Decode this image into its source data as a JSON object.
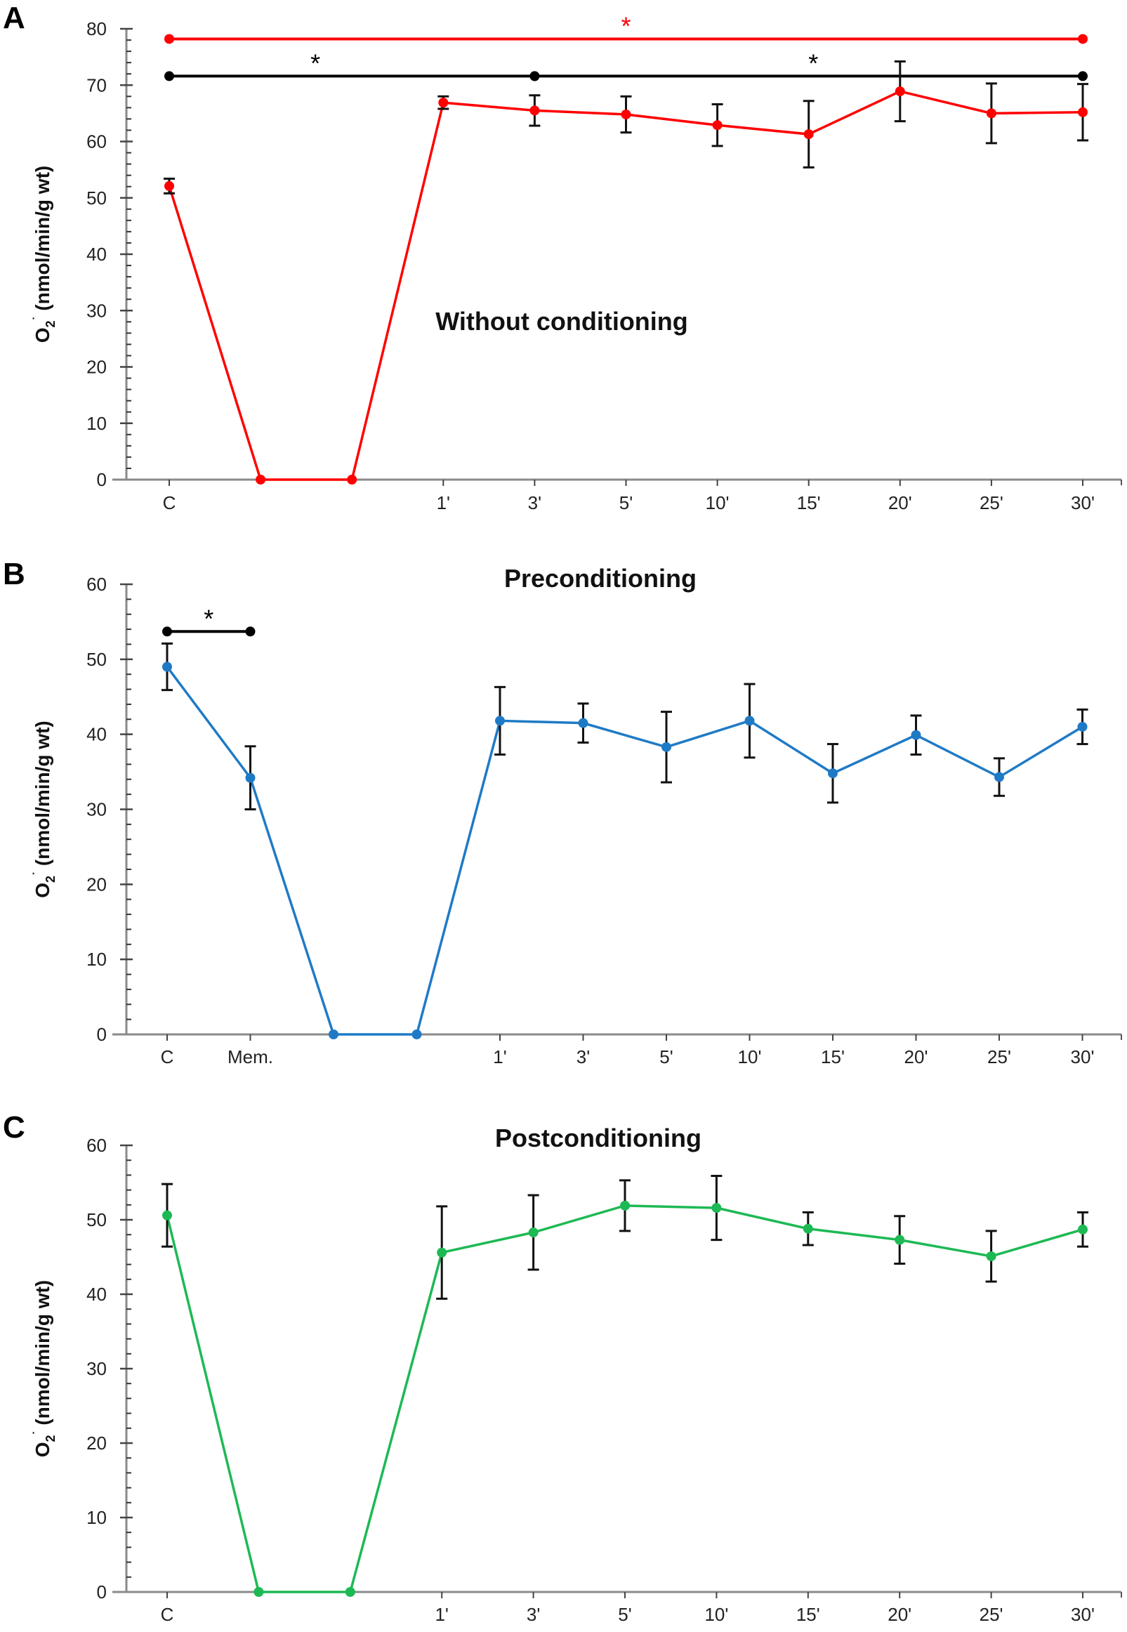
{
  "chart_data": [
    {
      "type": "line",
      "panel": "A",
      "title": "Without conditioning",
      "ylabel": "O2·⁻ (nmol/min/g wt)",
      "ylabel_parts": {
        "main": "O",
        "sub": "2",
        "sup": "·",
        "rest": " (nmol/min/g wt)"
      },
      "xlabel": "",
      "ylim": [
        0,
        80
      ],
      "yticks": [
        0,
        10,
        20,
        30,
        40,
        50,
        60,
        70,
        80
      ],
      "minor_tick_step": 2,
      "categories": [
        "C",
        "",
        "",
        "1'",
        "3'",
        "5'",
        "10'",
        "15'",
        "20'",
        "25'",
        "30'"
      ],
      "color": "#ff0000",
      "series": [
        {
          "name": "Without conditioning",
          "values": [
            52.1,
            0,
            0,
            66.9,
            65.5,
            64.8,
            62.9,
            61.3,
            68.9,
            65.0,
            65.2
          ],
          "errors": [
            1.3,
            null,
            null,
            1.1,
            2.7,
            3.2,
            3.7,
            5.9,
            5.3,
            5.3,
            5.0
          ]
        }
      ],
      "significance": [
        {
          "from": 0,
          "to": 10,
          "level": 78.2,
          "label": "*",
          "color": "#ff0000",
          "label_at": 5
        },
        {
          "from": 0,
          "to": 4,
          "level": 71.6,
          "label": "*",
          "color": "#000000",
          "label_at": 1.6
        },
        {
          "from": 4,
          "to": 10,
          "level": 71.6,
          "label": "*",
          "color": "#000000",
          "label_at": 7.05
        }
      ]
    },
    {
      "type": "line",
      "panel": "B",
      "title": "Preconditioning",
      "ylabel": "O2·⁻ (nmol/min/g wt)",
      "ylabel_parts": {
        "main": "O",
        "sub": "2",
        "sup": "·",
        "rest": " (nmol/min/g wt)"
      },
      "xlabel": "",
      "ylim": [
        0,
        60
      ],
      "yticks": [
        0,
        10,
        20,
        30,
        40,
        50,
        60
      ],
      "minor_tick_step": 2,
      "categories": [
        "C",
        "Mem.",
        "",
        "",
        "1'",
        "3'",
        "5'",
        "10'",
        "15'",
        "20'",
        "25'",
        "30'"
      ],
      "color": "#1f7ac6",
      "series": [
        {
          "name": "Preconditioning",
          "values": [
            49.0,
            34.2,
            0,
            0,
            41.8,
            41.5,
            38.3,
            41.8,
            34.8,
            39.9,
            34.3,
            41.0
          ],
          "errors": [
            3.1,
            4.2,
            null,
            null,
            4.5,
            2.6,
            4.7,
            4.9,
            3.9,
            2.6,
            2.5,
            2.3
          ]
        }
      ],
      "significance": [
        {
          "from": 0,
          "to": 1,
          "level": 53.7,
          "label": "*",
          "color": "#000000",
          "label_at": 0.5
        }
      ]
    },
    {
      "type": "line",
      "panel": "C",
      "title": "Postconditioning",
      "ylabel": "O2·⁻ (nmol/min/g wt)",
      "ylabel_parts": {
        "main": "O",
        "sub": "2",
        "sup": "·",
        "rest": " (nmol/min/g wt)"
      },
      "xlabel": "",
      "ylim": [
        0,
        60
      ],
      "yticks": [
        0,
        10,
        20,
        30,
        40,
        50,
        60
      ],
      "minor_tick_step": 2,
      "categories": [
        "C",
        "",
        "",
        "1'",
        "3'",
        "5'",
        "10'",
        "15'",
        "20'",
        "25'",
        "30'"
      ],
      "color": "#1db954",
      "series": [
        {
          "name": "Postconditioning",
          "values": [
            50.6,
            0,
            0,
            45.6,
            48.3,
            51.9,
            51.6,
            48.8,
            47.3,
            45.1,
            48.7
          ],
          "errors": [
            4.2,
            null,
            null,
            6.2,
            5.0,
            3.4,
            4.3,
            2.2,
            3.2,
            3.4,
            2.3
          ]
        }
      ],
      "significance": []
    }
  ]
}
